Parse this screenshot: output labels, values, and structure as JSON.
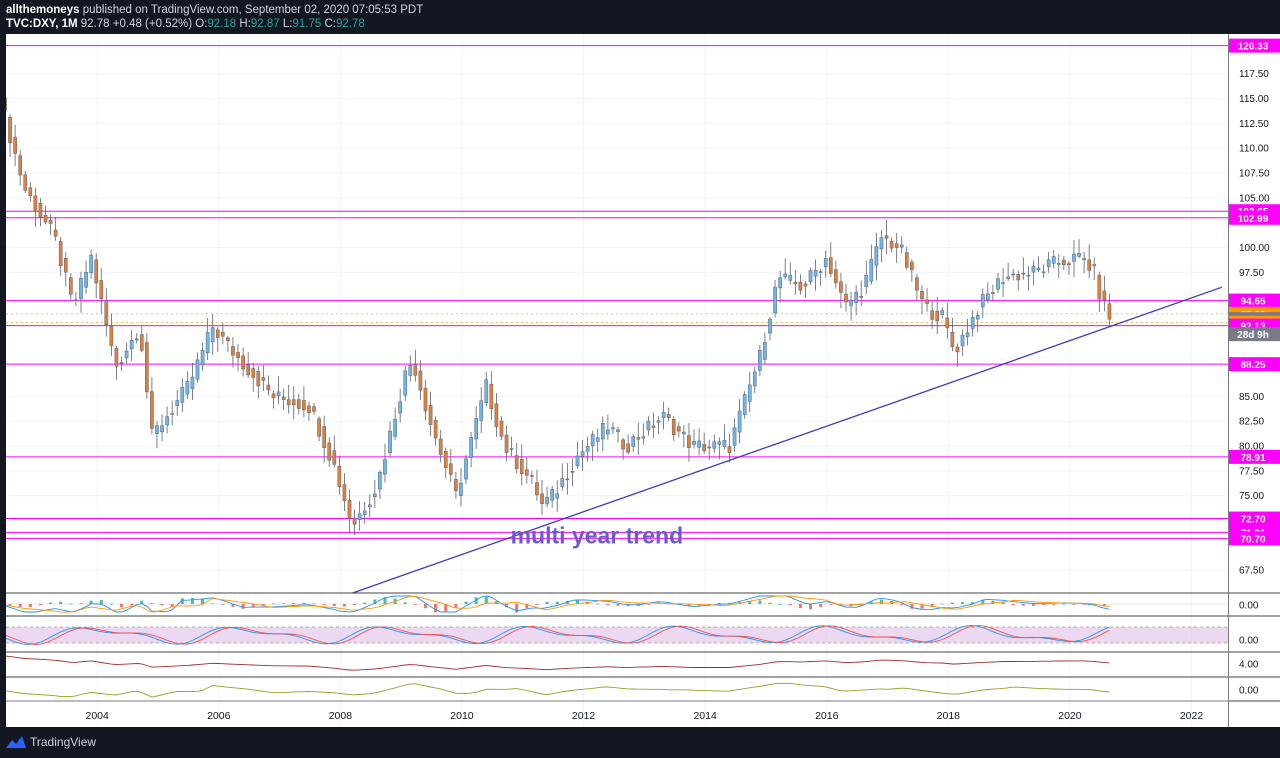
{
  "header": {
    "author": "allthemoneys",
    "published": "published on TradingView.com, September 02, 2020 07:05:53 PDT",
    "symbol": "TVC:DXY, 1M",
    "price": "92.78",
    "change": "+0.48 (+0.52%)",
    "o_label": "O:",
    "o_value": "92.18",
    "h_label": "H:",
    "h_value": "92.87",
    "l_label": "L:",
    "l_value": "91.75",
    "c_label": "C:",
    "c_value": "92.78"
  },
  "footer": {
    "brand": "TradingView"
  },
  "colors": {
    "background": "#131722",
    "up": "#6fb6ea",
    "down": "#e0803a",
    "level_line": "#ff00ff",
    "trendline": "#3c3cc0",
    "annotation": "#6a5acd",
    "last_price_bg": "#787b86",
    "orange_tag": "#ff9800"
  },
  "annotation": "multi year trend",
  "countdown": "28d 9h",
  "chart_data": {
    "type": "candlestick",
    "interval": "1M",
    "x_ticks": [
      "2004",
      "2006",
      "2008",
      "2010",
      "2012",
      "2014",
      "2016",
      "2018",
      "2020",
      "2022"
    ],
    "y_ticks": [
      "67.50",
      "75.00",
      "77.50",
      "80.00",
      "82.50",
      "85.00",
      "97.50",
      "100.00",
      "105.00",
      "107.50",
      "110.00",
      "112.50",
      "115.00",
      "117.50"
    ],
    "ylim": [
      65.2,
      121.5
    ],
    "price_tags": [
      {
        "label": "120.33",
        "value": 120.33,
        "color": "#ff00ff"
      },
      {
        "label": "103.65",
        "value": 103.65,
        "color": "#ff00ff"
      },
      {
        "label": "102.99",
        "value": 102.99,
        "color": "#ff00ff"
      },
      {
        "label": "94.65",
        "value": 94.65,
        "color": "#ff00ff"
      },
      {
        "label": "93.32",
        "value": 93.32,
        "color": "#ff9800"
      },
      {
        "label": "92.78",
        "value": 92.78,
        "color": "#787b86"
      },
      {
        "label": "92.42",
        "value": 92.42,
        "color": "#ff9800"
      },
      {
        "label": "92.13",
        "value": 92.13,
        "color": "#ff00ff"
      },
      {
        "label": "88.25",
        "value": 88.25,
        "color": "#ff00ff"
      },
      {
        "label": "78.91",
        "value": 78.91,
        "color": "#ff00ff"
      },
      {
        "label": "72.70",
        "value": 72.7,
        "color": "#ff00ff"
      },
      {
        "label": "71.31",
        "value": 71.31,
        "color": "#ff00ff"
      },
      {
        "label": "70.70",
        "value": 70.7,
        "color": "#ff00ff"
      }
    ],
    "horizontal_levels": [
      120.33,
      103.65,
      102.99,
      94.65,
      92.13,
      88.25,
      78.91,
      72.7,
      71.31,
      70.7
    ],
    "trendline": {
      "start": [
        2008.2,
        65.2
      ],
      "end": [
        2022.5,
        96.0
      ]
    },
    "anchors": [
      [
        2002.4,
        115.0
      ],
      [
        2002.8,
        106.0
      ],
      [
        2003.3,
        101.0
      ],
      [
        2003.6,
        94.0
      ],
      [
        2003.9,
        99.0
      ],
      [
        2004.3,
        88.0
      ],
      [
        2004.7,
        92.0
      ],
      [
        2004.9,
        81.0
      ],
      [
        2005.5,
        86.0
      ],
      [
        2005.9,
        92.0
      ],
      [
        2006.3,
        89.0
      ],
      [
        2006.9,
        85.0
      ],
      [
        2007.5,
        84.0
      ],
      [
        2007.9,
        78.0
      ],
      [
        2008.2,
        72.0
      ],
      [
        2008.6,
        76.0
      ],
      [
        2009.1,
        88.0
      ],
      [
        2009.2,
        88.5
      ],
      [
        2009.5,
        82.0
      ],
      [
        2009.9,
        75.0
      ],
      [
        2010.4,
        86.0
      ],
      [
        2010.7,
        80.0
      ],
      [
        2011.2,
        76.0
      ],
      [
        2011.3,
        74.0
      ],
      [
        2011.5,
        75.0
      ],
      [
        2011.9,
        79.0
      ],
      [
        2012.4,
        82.0
      ],
      [
        2012.7,
        80.0
      ],
      [
        2013.3,
        83.0
      ],
      [
        2013.8,
        80.0
      ],
      [
        2014.4,
        80.0
      ],
      [
        2014.9,
        89.0
      ],
      [
        2015.2,
        97.0
      ],
      [
        2015.6,
        96.0
      ],
      [
        2016.0,
        99.0
      ],
      [
        2016.3,
        94.0
      ],
      [
        2016.6,
        96.0
      ],
      [
        2016.9,
        101.0
      ],
      [
        2017.2,
        100.0
      ],
      [
        2017.6,
        94.0
      ],
      [
        2017.9,
        93.0
      ],
      [
        2018.1,
        89.5
      ],
      [
        2018.5,
        94.0
      ],
      [
        2018.9,
        97.0
      ],
      [
        2019.4,
        97.5
      ],
      [
        2019.8,
        98.5
      ],
      [
        2020.2,
        99.0
      ],
      [
        2020.4,
        97.5
      ],
      [
        2020.5,
        95.0
      ],
      [
        2020.67,
        92.8
      ]
    ],
    "lower_panes": [
      {
        "type": "macd",
        "label": "0.00"
      },
      {
        "type": "stochastic",
        "label": "0.00"
      },
      {
        "type": "line",
        "label": "4.00"
      },
      {
        "type": "line",
        "label": "0.00"
      }
    ]
  }
}
